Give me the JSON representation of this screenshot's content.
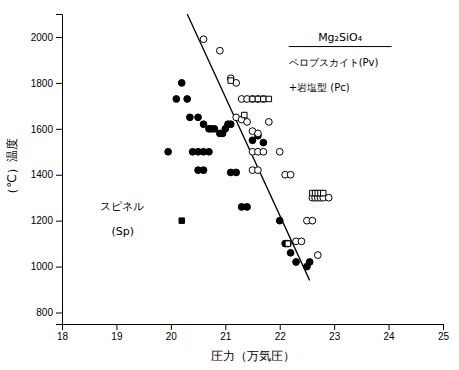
{
  "chart_data": {
    "type": "scatter",
    "xlabel": "圧力（万気圧）",
    "ylabel": "（℃）温度",
    "annotations": [
      {
        "text": "Mg₂SiO₄"
      },
      {
        "text": "ペロブスカイト(Pv)"
      },
      {
        "text": "+岩塩型 (Pc)"
      },
      {
        "text": "スピネル"
      },
      {
        "text": "(Sp)"
      }
    ],
    "xlim": [
      18,
      25
    ],
    "ylim": [
      750,
      2100
    ],
    "xticks": [
      18,
      19,
      20,
      21,
      22,
      23,
      24,
      25
    ],
    "yticks": [
      800,
      1000,
      1200,
      1400,
      1600,
      1800,
      2000
    ],
    "grid": false,
    "series": [
      {
        "type": "line",
        "color": "#000000",
        "x": [
          20.3,
          22.55
        ],
        "values": [
          2100,
          940
        ]
      },
      {
        "type": "scatter",
        "marker": "circle",
        "color": "#000000",
        "x": [
          19.95,
          20.1,
          20.2,
          20.3,
          20.35,
          20.5,
          20.6,
          20.7,
          20.75,
          20.8,
          20.9,
          20.95,
          21.0,
          21.05,
          21.1,
          20.4,
          20.5,
          20.6,
          20.7,
          20.5,
          20.6,
          21.1,
          21.2,
          21.3,
          21.4,
          21.5,
          21.6,
          21.7,
          22.0,
          22.1,
          22.15,
          22.2,
          22.3,
          22.5,
          22.55
        ],
        "values": [
          1500,
          1730,
          1800,
          1730,
          1650,
          1650,
          1620,
          1600,
          1600,
          1600,
          1580,
          1580,
          1600,
          1620,
          1620,
          1500,
          1500,
          1500,
          1500,
          1420,
          1420,
          1410,
          1410,
          1260,
          1260,
          1550,
          1570,
          1540,
          1200,
          1100,
          1100,
          1060,
          1020,
          1000,
          1020
        ]
      },
      {
        "type": "scatter",
        "marker": "open-circle",
        "color": "#000000",
        "x": [
          20.6,
          20.9,
          21.1,
          21.2,
          21.3,
          21.4,
          21.5,
          21.6,
          21.7,
          21.2,
          21.3,
          21.4,
          21.8,
          21.5,
          21.6,
          21.5,
          21.6,
          21.7,
          21.5,
          21.6,
          22.0,
          22.1,
          22.2,
          22.6,
          22.65,
          22.7,
          22.75,
          22.8,
          22.9,
          22.3,
          22.4,
          22.5,
          22.6,
          22.7
        ],
        "values": [
          1990,
          1940,
          1820,
          1800,
          1730,
          1730,
          1730,
          1730,
          1730,
          1650,
          1640,
          1630,
          1630,
          1590,
          1580,
          1500,
          1500,
          1500,
          1420,
          1420,
          1500,
          1400,
          1400,
          1300,
          1300,
          1300,
          1300,
          1300,
          1300,
          1110,
          1110,
          1200,
          1200,
          1050
        ]
      },
      {
        "type": "scatter",
        "marker": "open-square",
        "color": "#000000",
        "x": [
          21.1,
          21.5,
          21.6,
          21.7,
          21.8,
          21.35,
          22.6,
          22.65,
          22.7,
          22.75,
          22.8,
          22.15
        ],
        "values": [
          1810,
          1730,
          1730,
          1730,
          1730,
          1660,
          1320,
          1320,
          1320,
          1320,
          1320,
          1100
        ]
      },
      {
        "type": "scatter",
        "marker": "square",
        "color": "#000000",
        "x": [
          20.2
        ],
        "values": [
          1200
        ]
      }
    ]
  }
}
